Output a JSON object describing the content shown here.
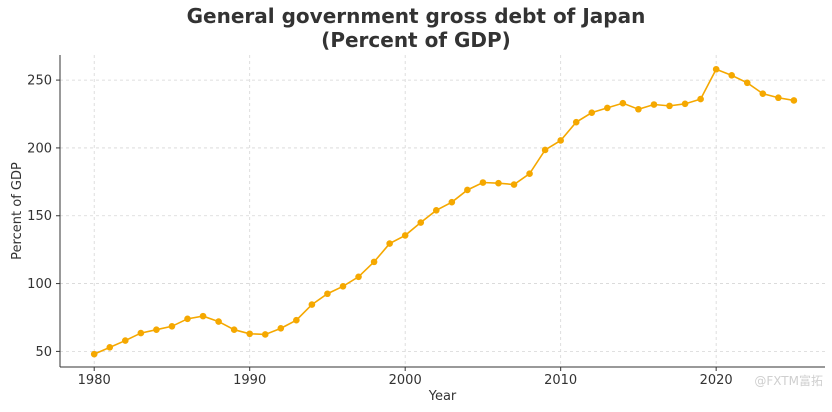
{
  "chart_data": {
    "type": "line",
    "title_line1": "General government gross debt of Japan",
    "title_line2": "(Percent of GDP)",
    "xlabel": "Year",
    "ylabel": "Percent of GDP",
    "xlim": [
      1977.8,
      1980.0
    ],
    "x_axis_max": 2027.0,
    "ylim": [
      38.5,
      268.5
    ],
    "xticks": [
      1980,
      1990,
      2000,
      2010,
      2020
    ],
    "yticks": [
      50,
      100,
      150,
      200,
      250
    ],
    "grid": true,
    "line_color": "#F5A800",
    "series": [
      {
        "x": [
          1980,
          1981,
          1982,
          1983,
          1984,
          1985,
          1986,
          1987,
          1988,
          1989,
          1990,
          1991,
          1992,
          1993,
          1994,
          1995,
          1996,
          1997,
          1998,
          1999,
          2000,
          2001,
          2002,
          2003,
          2004,
          2005,
          2006,
          2007,
          2008,
          2009,
          2010,
          2011,
          2012,
          2013,
          2014,
          2015,
          2016,
          2017,
          2018,
          2019,
          2020,
          2021,
          2022,
          2023,
          2024,
          2025
        ],
        "values": [
          48,
          53,
          58,
          63.5,
          66,
          68.5,
          74,
          76,
          72,
          66,
          63,
          62.5,
          67,
          73,
          84.5,
          92.5,
          98,
          105,
          116,
          129.5,
          135.5,
          145,
          154,
          160,
          169,
          174.5,
          174,
          173,
          181,
          198.5,
          205.5,
          219,
          226,
          229.5,
          233,
          228.5,
          232,
          231,
          232.5,
          236,
          258,
          253.5,
          248,
          240,
          237,
          235
        ]
      }
    ]
  },
  "watermark": "@FXTM富拓"
}
